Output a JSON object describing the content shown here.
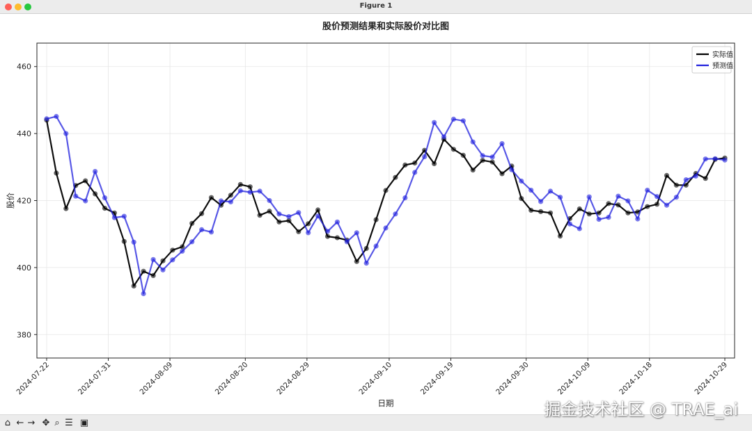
{
  "window": {
    "title": "Figure 1"
  },
  "chart_data": {
    "type": "line",
    "title": "股价预测结果和实际股价对比图",
    "xlabel": "日期",
    "ylabel": "股价",
    "ylim": [
      373,
      467
    ],
    "yticks": [
      380,
      400,
      420,
      440,
      460
    ],
    "x_start": "2024-07-22",
    "x_end": "2024-10-29",
    "xtick_labels": [
      "2024-07-22",
      "2024-07-31",
      "2024-08-09",
      "2024-08-20",
      "2024-08-29",
      "2024-09-10",
      "2024-09-19",
      "2024-09-30",
      "2024-10-09",
      "2024-10-18",
      "2024-10-29"
    ],
    "grid": true,
    "legend_position": "top-right",
    "markers": true,
    "series": [
      {
        "name": "实际值",
        "color": "#000000",
        "values": [
          444.0,
          428.2,
          417.6,
          424.5,
          425.9,
          422.0,
          417.7,
          416.3,
          407.8,
          394.5,
          398.9,
          397.6,
          402.0,
          405.2,
          406.2,
          413.2,
          416.1,
          420.9,
          418.6,
          421.6,
          424.8,
          424.1,
          415.6,
          416.8,
          413.6,
          414.0,
          410.7,
          413.1,
          417.2,
          409.3,
          408.9,
          408.2,
          401.8,
          405.7,
          414.3,
          423.0,
          426.9,
          430.6,
          431.2,
          435.0,
          431.0,
          438.3,
          435.3,
          433.5,
          429.1,
          432.0,
          431.5,
          428.0,
          430.3,
          420.6,
          417.1,
          416.7,
          416.3,
          409.4,
          414.6,
          417.5,
          416.0,
          416.3,
          419.1,
          418.7,
          416.3,
          416.6,
          418.2,
          418.9,
          427.5,
          424.6,
          424.6,
          428.1,
          426.6,
          432.3,
          432.7
        ]
      },
      {
        "name": "预测值",
        "color": "#2020dd",
        "values": [
          444.4,
          445.1,
          440.0,
          421.3,
          419.9,
          428.7,
          420.8,
          414.9,
          415.3,
          407.6,
          392.2,
          402.4,
          399.3,
          402.3,
          404.9,
          407.7,
          411.3,
          410.6,
          419.9,
          419.6,
          422.9,
          422.5,
          422.8,
          420.0,
          416.0,
          415.2,
          416.4,
          410.4,
          415.4,
          410.8,
          413.6,
          407.7,
          410.4,
          401.3,
          406.4,
          411.8,
          416.0,
          420.8,
          428.4,
          433.1,
          443.3,
          439.0,
          444.3,
          443.8,
          437.5,
          433.4,
          433.0,
          437.0,
          429.2,
          425.8,
          423.1,
          419.7,
          422.8,
          421.0,
          413.0,
          411.6,
          421.1,
          414.4,
          415.0,
          421.3,
          419.9,
          414.5,
          423.1,
          421.2,
          418.6,
          421.0,
          426.2,
          427.3,
          432.4,
          432.5,
          432.1
        ]
      }
    ]
  },
  "toolbar": {
    "home_glyph": "⌂",
    "back_glyph": "←",
    "forward_glyph": "→",
    "pan_glyph": "✥",
    "zoom_glyph": "⌕",
    "configure_glyph": "☰",
    "save_glyph": "▣"
  },
  "watermark": "掘金技术社区 @ TRAE_ai"
}
